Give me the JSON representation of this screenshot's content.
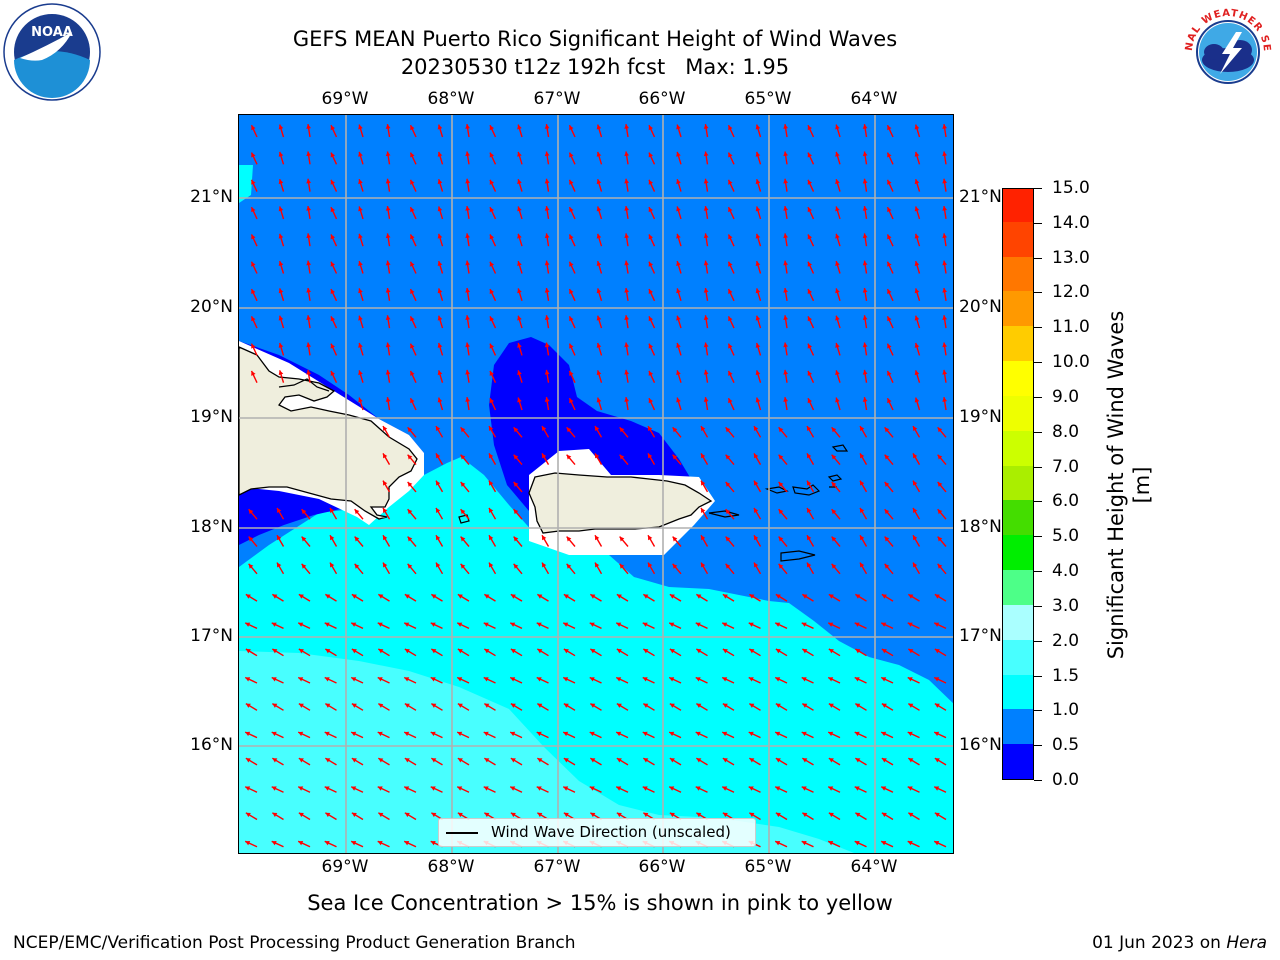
{
  "header": {
    "title_line1": "GEFS MEAN Puerto Rico Significant Height of Wind Waves",
    "title_line2": "20230530 t12z 192h fcst   Max: 1.95"
  },
  "logos": {
    "left": {
      "icon": "noaa-logo-icon",
      "text": "NOAA",
      "ring_text": "NATIONAL OCEANIC AND ATMOSPHERIC ADMINISTRATION · U.S. DEPARTMENT OF COMMERCE"
    },
    "right": {
      "icon": "nws-logo-icon",
      "ring_text": "NATIONAL WEATHER SERVICE"
    }
  },
  "map": {
    "lon_labels": [
      "69°W",
      "68°W",
      "67°W",
      "66°W",
      "65°W",
      "64°W"
    ],
    "lat_labels": [
      "21°N",
      "20°N",
      "19°N",
      "18°N",
      "17°N",
      "16°N"
    ],
    "legend_label": "Wind Wave Direction (unscaled)",
    "colors": {
      "band_0_0.5": "#0000ff",
      "band_0.5_1.0": "#0080ff",
      "band_1.0_1.5": "#00ffff",
      "band_1.5_2.0": "#48ffff",
      "land": "#efeedd",
      "arrow": "#ff0000",
      "grid": "#b0b0b0"
    }
  },
  "colorbar": {
    "label": "Significant Height of Wind Waves [m]",
    "ticks": [
      "0.0",
      "0.5",
      "1.0",
      "1.5",
      "2.0",
      "3.0",
      "4.0",
      "5.0",
      "6.0",
      "7.0",
      "8.0",
      "9.0",
      "10.0",
      "11.0",
      "12.0",
      "13.0",
      "14.0",
      "15.0"
    ],
    "colors": [
      "#0000ff",
      "#0080ff",
      "#00ffff",
      "#48ffff",
      "#aaffff",
      "#4dff88",
      "#00ee00",
      "#44dd00",
      "#aaee00",
      "#ccff00",
      "#eeff00",
      "#ffff00",
      "#ffcc00",
      "#ff9900",
      "#ff7700",
      "#ff4400",
      "#ff2200",
      "#ff0000"
    ]
  },
  "footer": {
    "note": "Sea Ice Concentration > 15% is shown in pink to yellow",
    "left": "NCEP/EMC/Verification Post Processing Product Generation Branch",
    "right_prefix": "01 Jun 2023 on ",
    "right_host": "Hera"
  }
}
